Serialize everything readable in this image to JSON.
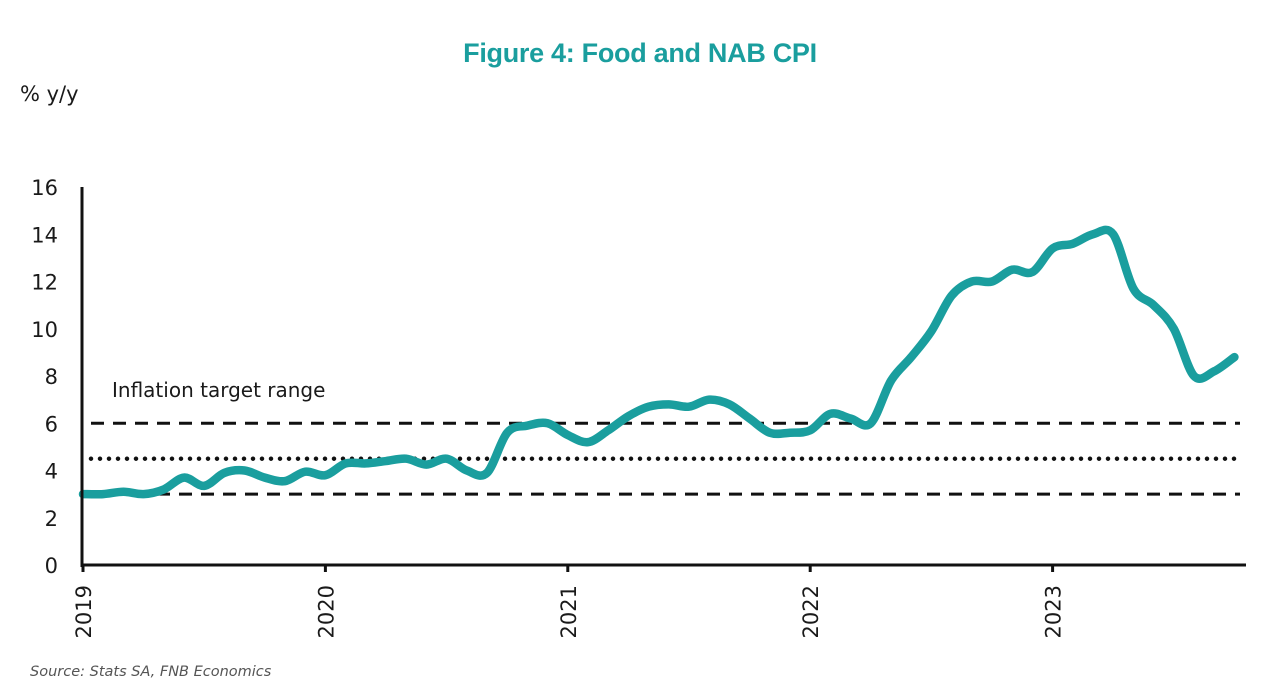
{
  "chart_data": {
    "type": "line",
    "title": "Figure 4: Food and NAB CPI",
    "ylabel": "% y/y",
    "xlabel": "",
    "ylim": [
      0,
      16
    ],
    "yticks": [
      0,
      2,
      4,
      6,
      8,
      10,
      12,
      14,
      16
    ],
    "xticks": [
      "2019",
      "2020",
      "2021",
      "2022",
      "2023"
    ],
    "x_start": "2019-01",
    "x_end": "2023-10",
    "grid": false,
    "series": [
      {
        "name": "Food and NAB CPI",
        "color": "#1a9e9e",
        "x": [
          "2019-01",
          "2019-02",
          "2019-03",
          "2019-04",
          "2019-05",
          "2019-06",
          "2019-07",
          "2019-08",
          "2019-09",
          "2019-10",
          "2019-11",
          "2019-12",
          "2020-01",
          "2020-02",
          "2020-03",
          "2020-04",
          "2020-05",
          "2020-06",
          "2020-07",
          "2020-08",
          "2020-09",
          "2020-10",
          "2020-11",
          "2020-12",
          "2021-01",
          "2021-02",
          "2021-03",
          "2021-04",
          "2021-05",
          "2021-06",
          "2021-07",
          "2021-08",
          "2021-09",
          "2021-10",
          "2021-11",
          "2021-12",
          "2022-01",
          "2022-02",
          "2022-03",
          "2022-04",
          "2022-05",
          "2022-06",
          "2022-07",
          "2022-08",
          "2022-09",
          "2022-10",
          "2022-11",
          "2022-12",
          "2023-01",
          "2023-02",
          "2023-03",
          "2023-04",
          "2023-05",
          "2023-06",
          "2023-07",
          "2023-08",
          "2023-09",
          "2023-10"
        ],
        "values": [
          3.0,
          3.0,
          3.1,
          3.0,
          3.2,
          3.7,
          3.35,
          3.9,
          4.0,
          3.7,
          3.55,
          3.95,
          3.8,
          4.3,
          4.3,
          4.4,
          4.5,
          4.25,
          4.5,
          4.0,
          3.9,
          5.6,
          5.9,
          6.0,
          5.5,
          5.2,
          5.7,
          6.3,
          6.7,
          6.8,
          6.7,
          7.0,
          6.8,
          6.2,
          5.6,
          5.6,
          5.7,
          6.4,
          6.2,
          6.0,
          7.8,
          8.8,
          9.9,
          11.4,
          12.0,
          12.0,
          12.5,
          12.4,
          13.4,
          13.6,
          14.0,
          14.0,
          11.7,
          11.0,
          10.0,
          8.0,
          8.2,
          8.8
        ]
      }
    ],
    "reference_lines": [
      {
        "name": "Inflation target upper",
        "value": 6,
        "style": "dashed"
      },
      {
        "name": "Inflation target midpoint",
        "value": 4.5,
        "style": "dotted"
      },
      {
        "name": "Inflation target lower",
        "value": 3,
        "style": "dashed"
      }
    ],
    "annotations": [
      {
        "text": "Inflation target range",
        "x": "2019-01",
        "y": 7.4
      }
    ],
    "legend": "none",
    "source": "Source: Stats SA, FNB Economics"
  }
}
